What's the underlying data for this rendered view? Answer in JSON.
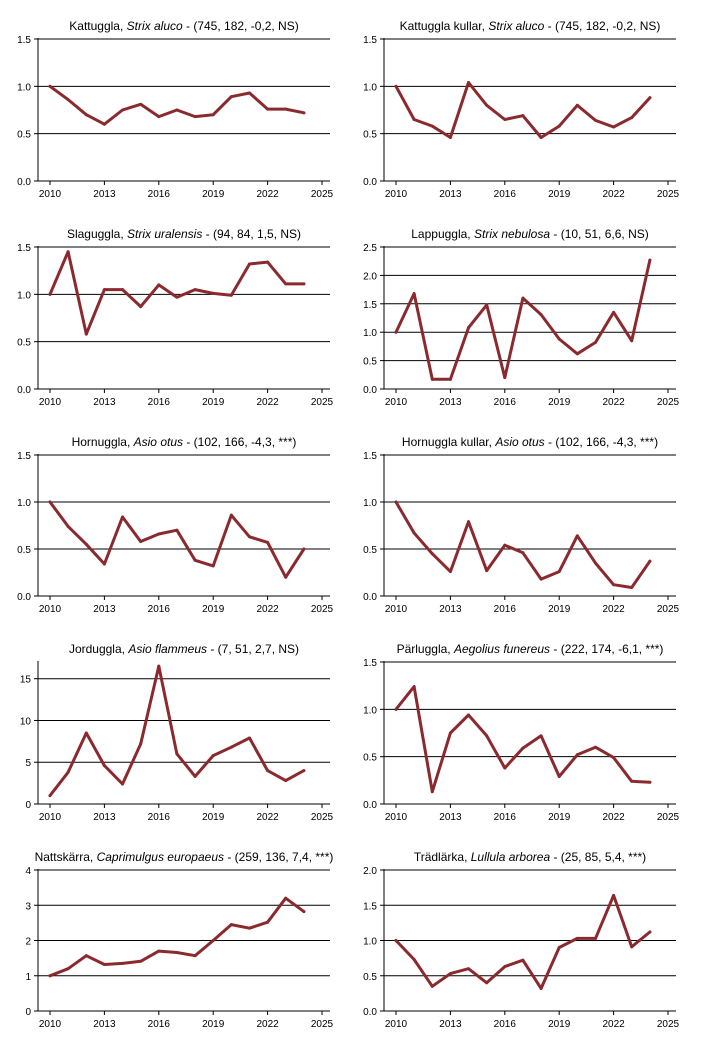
{
  "colors": {
    "line": "#8b2a2e",
    "axis": "#000000",
    "grid": "#000000",
    "text": "#000000"
  },
  "chart_data": [
    {
      "type": "line",
      "title": {
        "name": "Kattuggla, ",
        "species": "Strix aluco",
        "stats": " - (745, 182, -0,2, NS)"
      },
      "x": [
        2010,
        2011,
        2012,
        2013,
        2014,
        2015,
        2016,
        2017,
        2018,
        2019,
        2020,
        2021,
        2022,
        2023,
        2024
      ],
      "values": [
        1.0,
        0.86,
        0.7,
        0.6,
        0.75,
        0.81,
        0.68,
        0.75,
        0.68,
        0.7,
        0.89,
        0.93,
        0.76,
        0.76,
        0.72
      ],
      "xlim": [
        2010,
        2025
      ],
      "xticks": [
        2010,
        2013,
        2016,
        2019,
        2022,
        2025
      ],
      "ylim": [
        0,
        1.5
      ],
      "yticks": [
        0,
        0.5,
        1.0,
        1.5
      ],
      "yticklabels": [
        "0.0",
        "0.5",
        "1.0",
        "1.5"
      ]
    },
    {
      "type": "line",
      "title": {
        "name": "Kattuggla kullar, ",
        "species": "Strix aluco",
        "stats": " - (745, 182, -0,2, NS)"
      },
      "x": [
        2010,
        2011,
        2012,
        2013,
        2014,
        2015,
        2016,
        2017,
        2018,
        2019,
        2020,
        2021,
        2022,
        2023,
        2024
      ],
      "values": [
        1.0,
        0.65,
        0.58,
        0.46,
        1.04,
        0.8,
        0.65,
        0.69,
        0.46,
        0.58,
        0.8,
        0.64,
        0.57,
        0.67,
        0.88
      ],
      "xlim": [
        2010,
        2025
      ],
      "xticks": [
        2010,
        2013,
        2016,
        2019,
        2022,
        2025
      ],
      "ylim": [
        0,
        1.5
      ],
      "yticks": [
        0,
        0.5,
        1.0,
        1.5
      ],
      "yticklabels": [
        "0.0",
        "0.5",
        "1.0",
        "1.5"
      ]
    },
    {
      "type": "line",
      "title": {
        "name": "Slaguggla, ",
        "species": "Strix uralensis",
        "stats": " - (94, 84, 1,5, NS)"
      },
      "x": [
        2010,
        2011,
        2012,
        2013,
        2014,
        2015,
        2016,
        2017,
        2018,
        2019,
        2020,
        2021,
        2022,
        2023,
        2024
      ],
      "values": [
        1.0,
        1.45,
        0.58,
        1.05,
        1.05,
        0.87,
        1.1,
        0.97,
        1.05,
        1.01,
        0.99,
        1.32,
        1.34,
        1.11,
        1.11
      ],
      "xlim": [
        2010,
        2025
      ],
      "xticks": [
        2010,
        2013,
        2016,
        2019,
        2022,
        2025
      ],
      "ylim": [
        0,
        1.5
      ],
      "yticks": [
        0,
        0.5,
        1.0,
        1.5
      ],
      "yticklabels": [
        "0.0",
        "0.5",
        "1.0",
        "1.5"
      ]
    },
    {
      "type": "line",
      "title": {
        "name": "Lappuggla, ",
        "species": "Strix nebulosa",
        "stats": " - (10, 51, 6,6, NS)"
      },
      "x": [
        2010,
        2011,
        2012,
        2013,
        2014,
        2015,
        2016,
        2017,
        2018,
        2019,
        2020,
        2021,
        2022,
        2023,
        2024
      ],
      "values": [
        1.0,
        1.68,
        0.17,
        0.17,
        1.08,
        1.48,
        0.2,
        1.6,
        1.31,
        0.88,
        0.62,
        0.82,
        1.35,
        0.85,
        2.27
      ],
      "xlim": [
        2010,
        2025
      ],
      "xticks": [
        2010,
        2013,
        2016,
        2019,
        2022,
        2025
      ],
      "ylim": [
        0,
        2.5
      ],
      "yticks": [
        0,
        0.5,
        1.0,
        1.5,
        2.0,
        2.5
      ],
      "yticklabels": [
        "0.0",
        "0.5",
        "1.0",
        "1.5",
        "2.0",
        "2.5"
      ]
    },
    {
      "type": "line",
      "title": {
        "name": "Hornuggla, ",
        "species": "Asio otus",
        "stats": " - (102, 166, -4,3, ***)"
      },
      "x": [
        2010,
        2011,
        2012,
        2013,
        2014,
        2015,
        2016,
        2017,
        2018,
        2019,
        2020,
        2021,
        2022,
        2023,
        2024
      ],
      "values": [
        1.0,
        0.74,
        0.55,
        0.34,
        0.84,
        0.58,
        0.66,
        0.7,
        0.38,
        0.32,
        0.86,
        0.63,
        0.57,
        0.2,
        0.5
      ],
      "xlim": [
        2010,
        2025
      ],
      "xticks": [
        2010,
        2013,
        2016,
        2019,
        2022,
        2025
      ],
      "ylim": [
        0,
        1.5
      ],
      "yticks": [
        0,
        0.5,
        1.0,
        1.5
      ],
      "yticklabels": [
        "0.0",
        "0.5",
        "1.0",
        "1.5"
      ]
    },
    {
      "type": "line",
      "title": {
        "name": "Hornuggla kullar, ",
        "species": "Asio otus",
        "stats": " - (102, 166, -4,3, ***)"
      },
      "x": [
        2010,
        2011,
        2012,
        2013,
        2014,
        2015,
        2016,
        2017,
        2018,
        2019,
        2020,
        2021,
        2022,
        2023,
        2024
      ],
      "values": [
        1.0,
        0.67,
        0.45,
        0.26,
        0.79,
        0.27,
        0.54,
        0.46,
        0.18,
        0.26,
        0.64,
        0.35,
        0.12,
        0.09,
        0.37
      ],
      "xlim": [
        2010,
        2025
      ],
      "xticks": [
        2010,
        2013,
        2016,
        2019,
        2022,
        2025
      ],
      "ylim": [
        0,
        1.5
      ],
      "yticks": [
        0,
        0.5,
        1.0,
        1.5
      ],
      "yticklabels": [
        "0.0",
        "0.5",
        "1.0",
        "1.5"
      ]
    },
    {
      "type": "line",
      "title": {
        "name": "Jorduggla, ",
        "species": "Asio flammeus",
        "stats": " - (7, 51, 2,7, NS)"
      },
      "x": [
        2010,
        2011,
        2012,
        2013,
        2014,
        2015,
        2016,
        2017,
        2018,
        2019,
        2020,
        2021,
        2022,
        2023,
        2024
      ],
      "values": [
        1.0,
        3.8,
        8.5,
        4.6,
        2.4,
        7.2,
        16.5,
        6.0,
        3.3,
        5.8,
        6.8,
        7.9,
        4.0,
        2.8,
        4.0
      ],
      "xlim": [
        2010,
        2025
      ],
      "xticks": [
        2010,
        2013,
        2016,
        2019,
        2022,
        2025
      ],
      "ylim": [
        0,
        17
      ],
      "yticks": [
        0,
        5,
        10,
        15
      ],
      "yticklabels": [
        "0",
        "5",
        "10",
        "15"
      ]
    },
    {
      "type": "line",
      "title": {
        "name": "Pärluggla, ",
        "species": "Aegolius funereus",
        "stats": " - (222, 174, -6,1, ***)"
      },
      "x": [
        2010,
        2011,
        2012,
        2013,
        2014,
        2015,
        2016,
        2017,
        2018,
        2019,
        2020,
        2021,
        2022,
        2023,
        2024
      ],
      "values": [
        1.0,
        1.24,
        0.13,
        0.75,
        0.94,
        0.72,
        0.38,
        0.59,
        0.72,
        0.29,
        0.52,
        0.6,
        0.49,
        0.24,
        0.23
      ],
      "xlim": [
        2010,
        2025
      ],
      "xticks": [
        2010,
        2013,
        2016,
        2019,
        2022,
        2025
      ],
      "ylim": [
        0,
        1.5
      ],
      "yticks": [
        0,
        0.5,
        1.0,
        1.5
      ],
      "yticklabels": [
        "0.0",
        "0.5",
        "1.0",
        "1.5"
      ]
    },
    {
      "type": "line",
      "title": {
        "name": "Nattskärra, ",
        "species": "Caprimulgus europaeus",
        "stats": " - (259, 136, 7,4, ***)"
      },
      "x": [
        2010,
        2011,
        2012,
        2013,
        2014,
        2015,
        2016,
        2017,
        2018,
        2019,
        2020,
        2021,
        2022,
        2023,
        2024
      ],
      "values": [
        1.0,
        1.2,
        1.57,
        1.32,
        1.35,
        1.41,
        1.7,
        1.66,
        1.57,
        2.0,
        2.45,
        2.35,
        2.52,
        3.2,
        2.82
      ],
      "xlim": [
        2010,
        2025
      ],
      "xticks": [
        2010,
        2013,
        2016,
        2019,
        2022,
        2025
      ],
      "ylim": [
        0,
        4
      ],
      "yticks": [
        0,
        1,
        2,
        3,
        4
      ],
      "yticklabels": [
        "0",
        "1",
        "2",
        "3",
        "4"
      ]
    },
    {
      "type": "line",
      "title": {
        "name": "Trädlärka, ",
        "species": "Lullula arborea",
        "stats": " - (25, 85, 5,4, ***)"
      },
      "x": [
        2010,
        2011,
        2012,
        2013,
        2014,
        2015,
        2016,
        2017,
        2018,
        2019,
        2020,
        2021,
        2022,
        2023,
        2024
      ],
      "values": [
        1.0,
        0.73,
        0.35,
        0.53,
        0.6,
        0.4,
        0.63,
        0.72,
        0.32,
        0.9,
        1.03,
        1.03,
        1.64,
        0.91,
        1.12
      ],
      "xlim": [
        2010,
        2025
      ],
      "xticks": [
        2010,
        2013,
        2016,
        2019,
        2022,
        2025
      ],
      "ylim": [
        0,
        2.0
      ],
      "yticks": [
        0,
        0.5,
        1.0,
        1.5,
        2.0
      ],
      "yticklabels": [
        "0.0",
        "0.5",
        "1.0",
        "1.5",
        "2.0"
      ]
    }
  ]
}
